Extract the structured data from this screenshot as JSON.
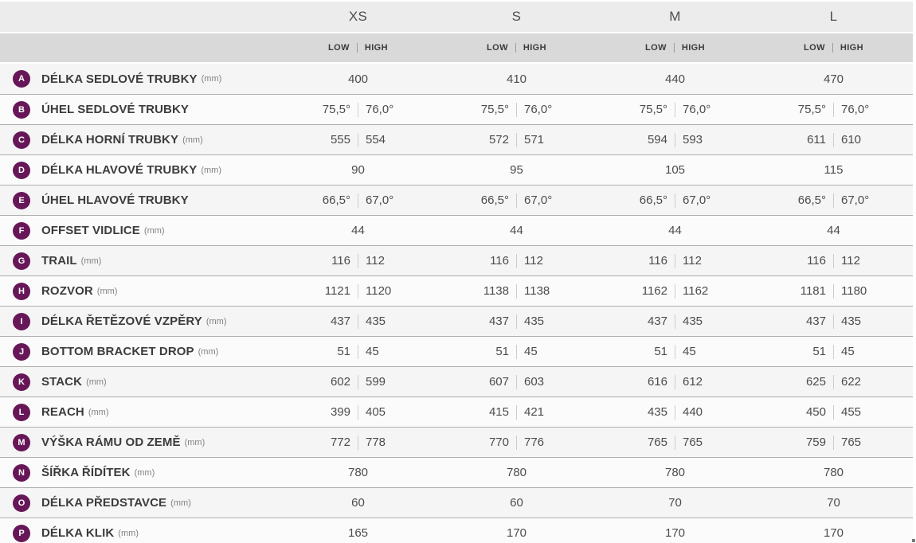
{
  "table": {
    "sizes": [
      "XS",
      "S",
      "M",
      "L"
    ],
    "low_label": "LOW",
    "high_label": "HIGH",
    "unit_mm": "(mm)",
    "rows": [
      {
        "letter": "A",
        "label": "DÉLKA SEDLOVÉ TRUBKY",
        "unit": "(mm)",
        "values": [
          [
            "400"
          ],
          [
            "410"
          ],
          [
            "440"
          ],
          [
            "470"
          ]
        ]
      },
      {
        "letter": "B",
        "label": "ÚHEL SEDLOVÉ TRUBKY",
        "unit": "",
        "values": [
          [
            "75,5°",
            "76,0°"
          ],
          [
            "75,5°",
            "76,0°"
          ],
          [
            "75,5°",
            "76,0°"
          ],
          [
            "75,5°",
            "76,0°"
          ]
        ]
      },
      {
        "letter": "C",
        "label": "DÉLKA HORNÍ TRUBKY",
        "unit": "(mm)",
        "values": [
          [
            "555",
            "554"
          ],
          [
            "572",
            "571"
          ],
          [
            "594",
            "593"
          ],
          [
            "611",
            "610"
          ]
        ]
      },
      {
        "letter": "D",
        "label": "DÉLKA HLAVOVÉ TRUBKY",
        "unit": "(mm)",
        "values": [
          [
            "90"
          ],
          [
            "95"
          ],
          [
            "105"
          ],
          [
            "115"
          ]
        ]
      },
      {
        "letter": "E",
        "label": "ÚHEL HLAVOVÉ TRUBKY",
        "unit": "",
        "values": [
          [
            "66,5°",
            "67,0°"
          ],
          [
            "66,5°",
            "67,0°"
          ],
          [
            "66,5°",
            "67,0°"
          ],
          [
            "66,5°",
            "67,0°"
          ]
        ]
      },
      {
        "letter": "F",
        "label": "OFFSET VIDLICE",
        "unit": "(mm)",
        "values": [
          [
            "44"
          ],
          [
            "44"
          ],
          [
            "44"
          ],
          [
            "44"
          ]
        ]
      },
      {
        "letter": "G",
        "label": "TRAIL",
        "unit": "(mm)",
        "values": [
          [
            "116",
            "112"
          ],
          [
            "116",
            "112"
          ],
          [
            "116",
            "112"
          ],
          [
            "116",
            "112"
          ]
        ]
      },
      {
        "letter": "H",
        "label": "ROZVOR",
        "unit": "(mm)",
        "values": [
          [
            "1121",
            "1120"
          ],
          [
            "1138",
            "1138"
          ],
          [
            "1162",
            "1162"
          ],
          [
            "1181",
            "1180"
          ]
        ]
      },
      {
        "letter": "I",
        "label": "DÉLKA ŘETĚZOVÉ VZPĚRY",
        "unit": "(mm)",
        "values": [
          [
            "437",
            "435"
          ],
          [
            "437",
            "435"
          ],
          [
            "437",
            "435"
          ],
          [
            "437",
            "435"
          ]
        ]
      },
      {
        "letter": "J",
        "label": "BOTTOM BRACKET DROP",
        "unit": "(mm)",
        "values": [
          [
            "51",
            "45"
          ],
          [
            "51",
            "45"
          ],
          [
            "51",
            "45"
          ],
          [
            "51",
            "45"
          ]
        ]
      },
      {
        "letter": "K",
        "label": "STACK",
        "unit": "(mm)",
        "values": [
          [
            "602",
            "599"
          ],
          [
            "607",
            "603"
          ],
          [
            "616",
            "612"
          ],
          [
            "625",
            "622"
          ]
        ]
      },
      {
        "letter": "L",
        "label": "REACH",
        "unit": "(mm)",
        "values": [
          [
            "399",
            "405"
          ],
          [
            "415",
            "421"
          ],
          [
            "435",
            "440"
          ],
          [
            "450",
            "455"
          ]
        ]
      },
      {
        "letter": "M",
        "label": "VÝŠKA RÁMU OD ZEMĚ",
        "unit": "(mm)",
        "values": [
          [
            "772",
            "778"
          ],
          [
            "770",
            "776"
          ],
          [
            "765",
            "765"
          ],
          [
            "759",
            "765"
          ]
        ]
      },
      {
        "letter": "N",
        "label": "ŠÍŘKA ŘÍDÍTEK",
        "unit": "(mm)",
        "values": [
          [
            "780"
          ],
          [
            "780"
          ],
          [
            "780"
          ],
          [
            "780"
          ]
        ]
      },
      {
        "letter": "O",
        "label": "DÉLKA PŘEDSTAVCE",
        "unit": "(mm)",
        "values": [
          [
            "60"
          ],
          [
            "60"
          ],
          [
            "70"
          ],
          [
            "70"
          ]
        ]
      },
      {
        "letter": "P",
        "label": "DÉLKA KLIK",
        "unit": "(mm)",
        "values": [
          [
            "165"
          ],
          [
            "170"
          ],
          [
            "170"
          ],
          [
            "170"
          ]
        ]
      }
    ]
  },
  "colors": {
    "badge": "#671758",
    "header_bg": "#ececec",
    "subheader_bg": "#d9d9d9",
    "row_odd_bg": "#f5f5f5",
    "row_even_bg": "#fbfbfb",
    "row_border": "#aeaeae"
  }
}
